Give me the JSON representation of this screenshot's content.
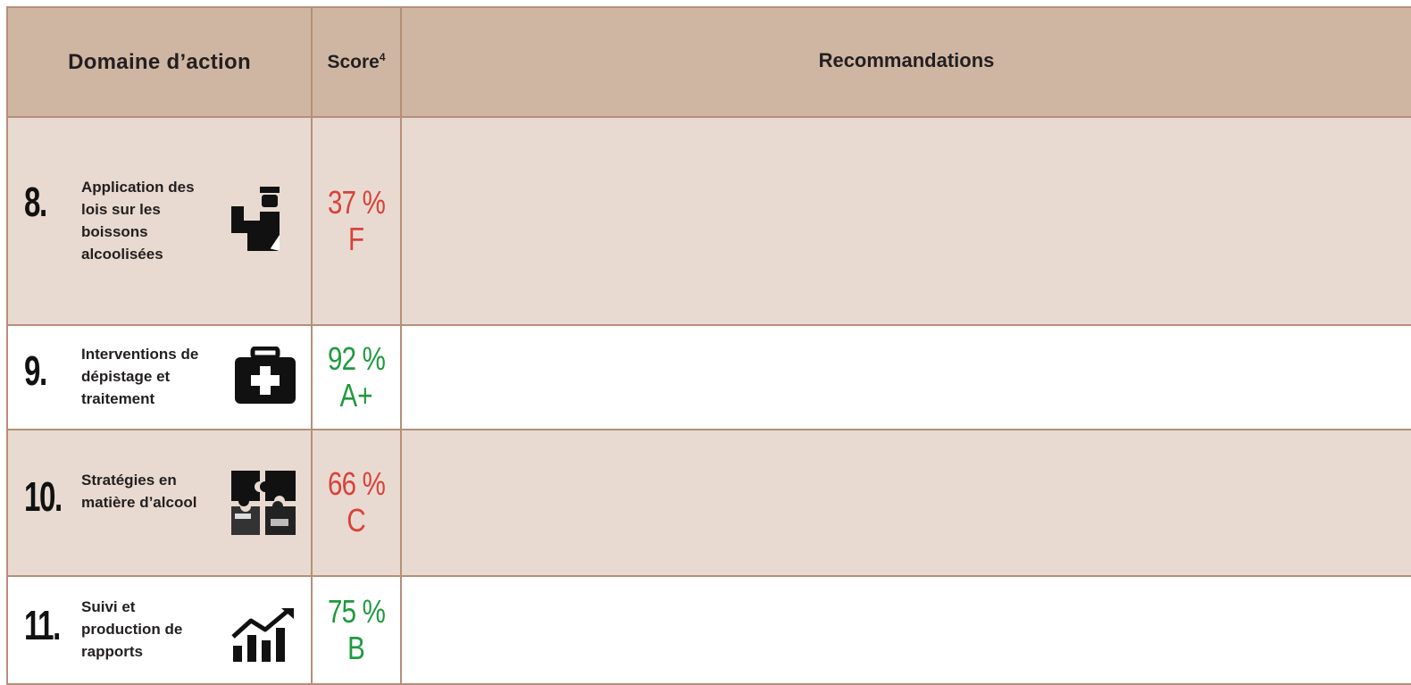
{
  "header": {
    "domain_label": "Domaine d’action",
    "score_label": "Score",
    "score_footnote": "4",
    "recommendations_label": "Recommandations",
    "recommendations_note": ""
  },
  "rows": [
    {
      "number": "8.",
      "name": "Application des lois sur les boissons alcoolisées",
      "icon": "police-officer-icon",
      "percent": "37 %",
      "grade": "F",
      "grade_color": "#d9413b",
      "recommendations": []
    },
    {
      "number": "9.",
      "name": "Interventions de dépistage et traitement",
      "icon": "first-aid-kit-icon",
      "percent": "92 %",
      "grade": "A+",
      "grade_color": "#1e9a3e",
      "recommendations": []
    },
    {
      "number": "10.",
      "name": "Stratégies en matière d’alcool",
      "icon": "puzzle-pieces-icon",
      "percent": "66 %",
      "grade": "C",
      "grade_color": "#d9413b",
      "recommendations": []
    },
    {
      "number": "11.",
      "name": "Suivi et production de rapports",
      "icon": "bar-chart-trend-icon",
      "percent": "75 %",
      "grade": "B",
      "grade_color": "#1e9a3e",
      "recommendations": []
    }
  ],
  "colors": {
    "header_bg": "#cfb6a3",
    "shaded_row_bg": "#e8dad0",
    "border": "#b58f78",
    "fail_red": "#d9413b",
    "pass_green": "#1e9a3e"
  }
}
